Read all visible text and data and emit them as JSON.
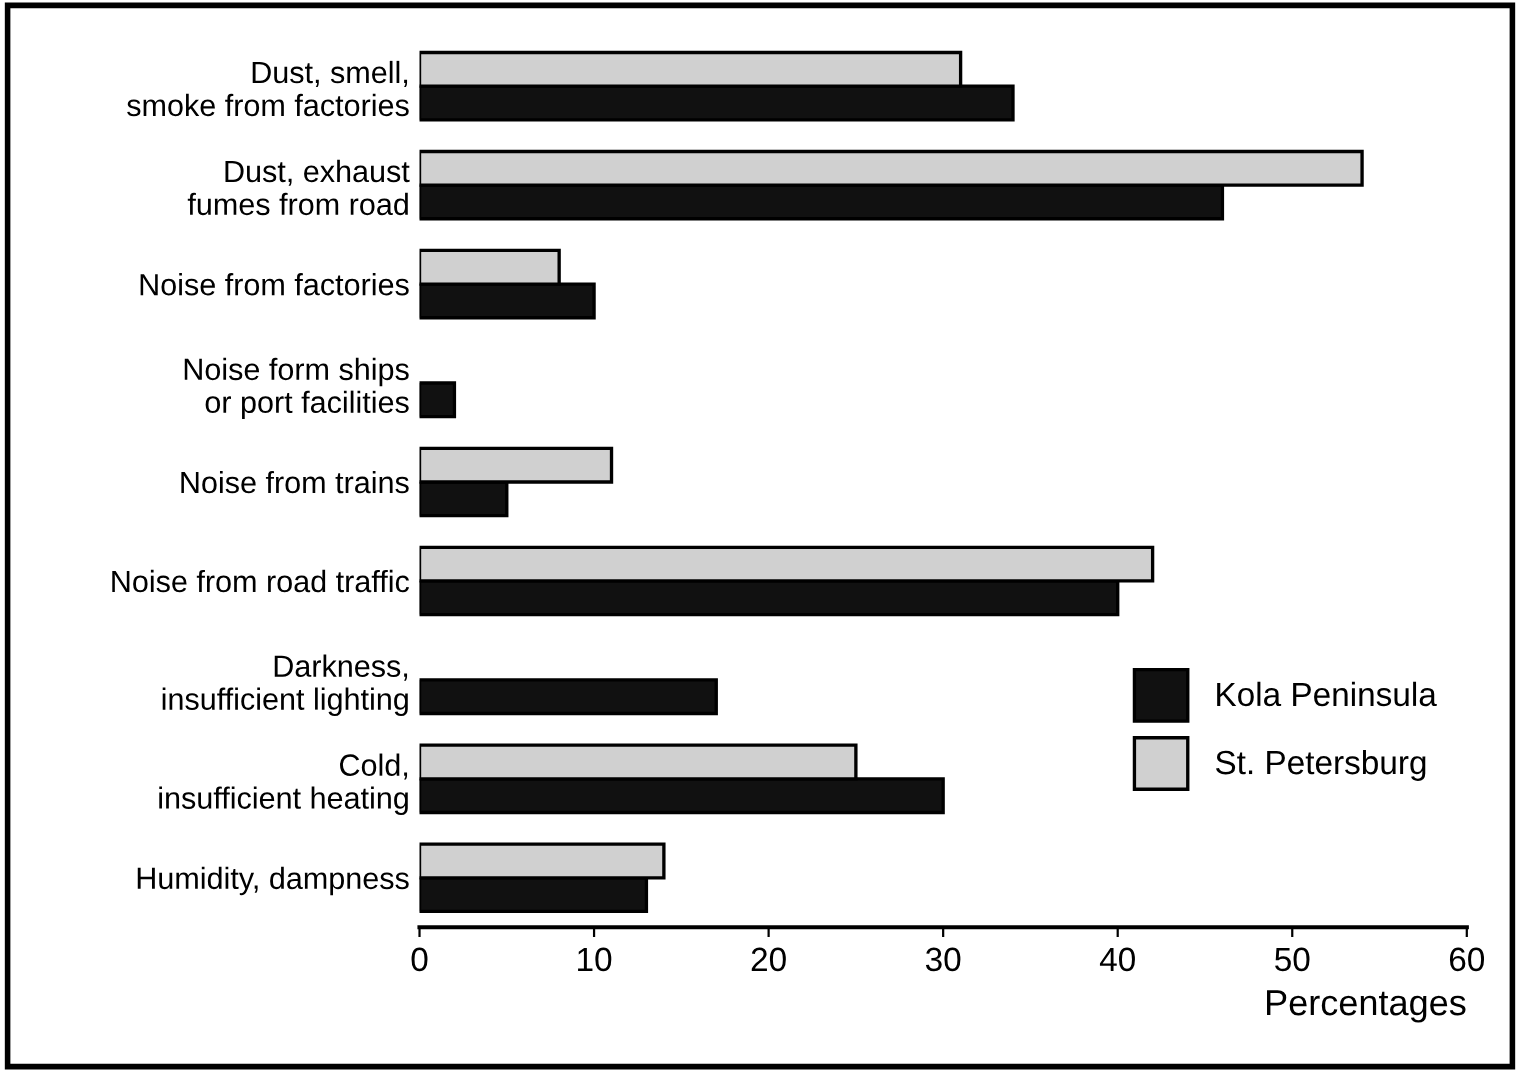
{
  "chart_data": {
    "type": "bar",
    "orientation": "horizontal",
    "xlabel": "Percentages",
    "categories": [
      "Dust, smell,\nsmoke from factories",
      "Dust, exhaust\nfumes from road",
      "Noise from factories",
      "Noise form ships\nor port facilities",
      "Noise from trains",
      "Noise from road traffic",
      "Darkness,\ninsufficient lighting",
      "Cold,\ninsufficient heating",
      "Humidity, dampness"
    ],
    "series": [
      {
        "name": "Kola Peninsula",
        "color": "#111111",
        "values": [
          34,
          46,
          10,
          2,
          5,
          40,
          17,
          30,
          13
        ]
      },
      {
        "name": "St. Petersburg",
        "color": "#d0d0d0",
        "values": [
          31,
          54,
          8,
          null,
          11,
          42,
          null,
          25,
          14
        ]
      }
    ],
    "xlim": [
      0,
      60
    ],
    "xticks": [
      0,
      10,
      20,
      30,
      40,
      50,
      60
    ],
    "grid": false,
    "legend": "bottom right"
  }
}
